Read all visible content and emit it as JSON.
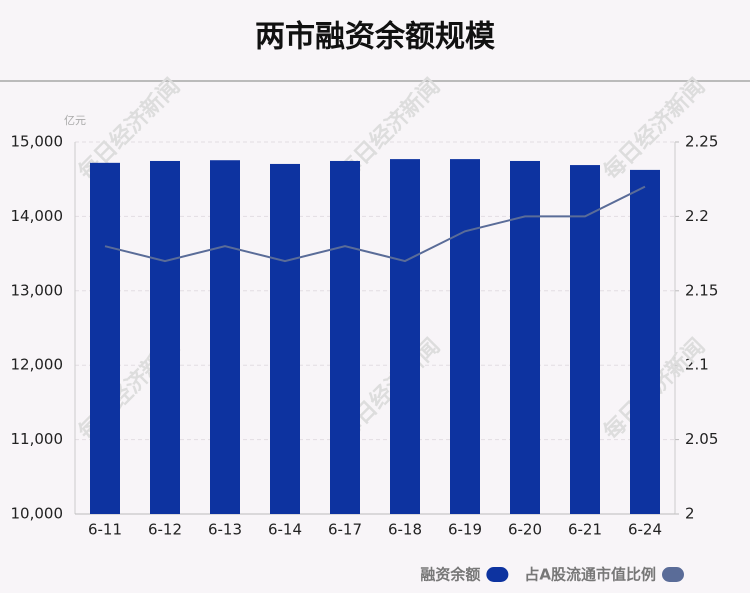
{
  "chart_data": {
    "type": "bar-line",
    "title": "两市融资余额规模",
    "unit": "亿元",
    "watermark": "每日经济新闻",
    "categories": [
      "6-11",
      "6-12",
      "6-13",
      "6-14",
      "6-17",
      "6-18",
      "6-19",
      "6-20",
      "6-21",
      "6-24"
    ],
    "series": [
      {
        "name": "融资余额",
        "type": "bar",
        "color": "#0d33a0",
        "values": [
          14720,
          14745,
          14755,
          14705,
          14745,
          14770,
          14770,
          14745,
          14690,
          14625
        ]
      },
      {
        "name": "占A股流通市值比例",
        "type": "line",
        "axis": "y2",
        "color": "#5a6c98",
        "values": [
          2.18,
          2.17,
          2.18,
          2.17,
          2.18,
          2.17,
          2.19,
          2.2,
          2.2,
          2.22
        ]
      }
    ],
    "ylim": [
      10000,
      15000
    ],
    "yticks": [
      {
        "value": 10000,
        "label": "10,000"
      },
      {
        "value": 11000,
        "label": "11,000"
      },
      {
        "value": 12000,
        "label": "12,000"
      },
      {
        "value": 13000,
        "label": "13,000"
      },
      {
        "value": 14000,
        "label": "14,000"
      },
      {
        "value": 15000,
        "label": "15,000"
      }
    ],
    "y2lim": [
      2,
      2.25
    ],
    "y2ticks": [
      2,
      2.05,
      2.1,
      2.15,
      2.2,
      2.25
    ],
    "grid": true,
    "legend": "bottom-right"
  }
}
